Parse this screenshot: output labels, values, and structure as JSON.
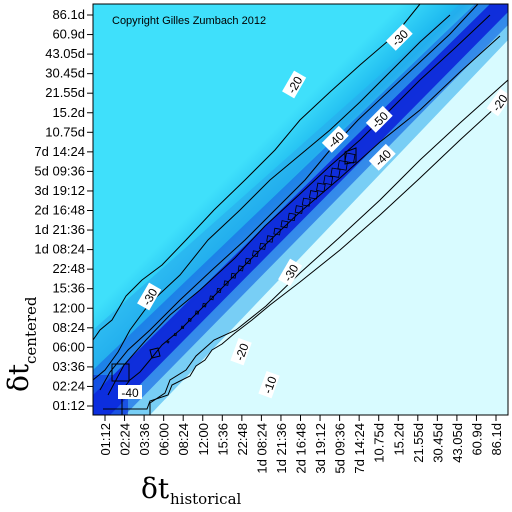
{
  "chart_data": {
    "type": "heatmap",
    "title": "",
    "copyright": "Copyright Gilles Zumbach 2012",
    "xlabel_main": "δt",
    "xlabel_sub": "historical",
    "ylabel_main": "δt",
    "ylabel_sub": "centered",
    "x_ticks": [
      "01:12",
      "02:24",
      "03:36",
      "06:00",
      "08:24",
      "12:00",
      "15:36",
      "22:48",
      "1d 08:24",
      "1d 21:36",
      "2d 16:48",
      "3d 19:12",
      "5d 09:36",
      "7d 14:24",
      "10.75d",
      "15.2d",
      "21.55d",
      "30.45d",
      "43.05d",
      "60.9d",
      "86.1d"
    ],
    "y_ticks": [
      "01:12",
      "02:24",
      "03:36",
      "06:00",
      "08:24",
      "12:00",
      "15:36",
      "22:48",
      "1d 08:24",
      "1d 21:36",
      "2d 16:48",
      "3d 19:12",
      "5d 09:36",
      "7d 14:24",
      "10.75d",
      "15.2d",
      "21.55d",
      "30.45d",
      "43.05d",
      "60.9d",
      "86.1d"
    ],
    "contour_labels": [
      {
        "text": "-10",
        "level": -10
      },
      {
        "text": "-20",
        "level": -20
      },
      {
        "text": "-20",
        "level": -20
      },
      {
        "text": "-20",
        "level": -20
      },
      {
        "text": "-30",
        "level": -30
      },
      {
        "text": "-30",
        "level": -30
      },
      {
        "text": "-30",
        "level": -30
      },
      {
        "text": "-40",
        "level": -40
      },
      {
        "text": "-40",
        "level": -40
      },
      {
        "text": "-40",
        "level": -40
      },
      {
        "text": "-50",
        "level": -50
      }
    ],
    "colors": {
      "deep": "#0a1fd8",
      "mid": "#1ab4ee",
      "light": "#3fe0fb",
      "pale": "#d8fbff",
      "line": "#000000"
    }
  }
}
